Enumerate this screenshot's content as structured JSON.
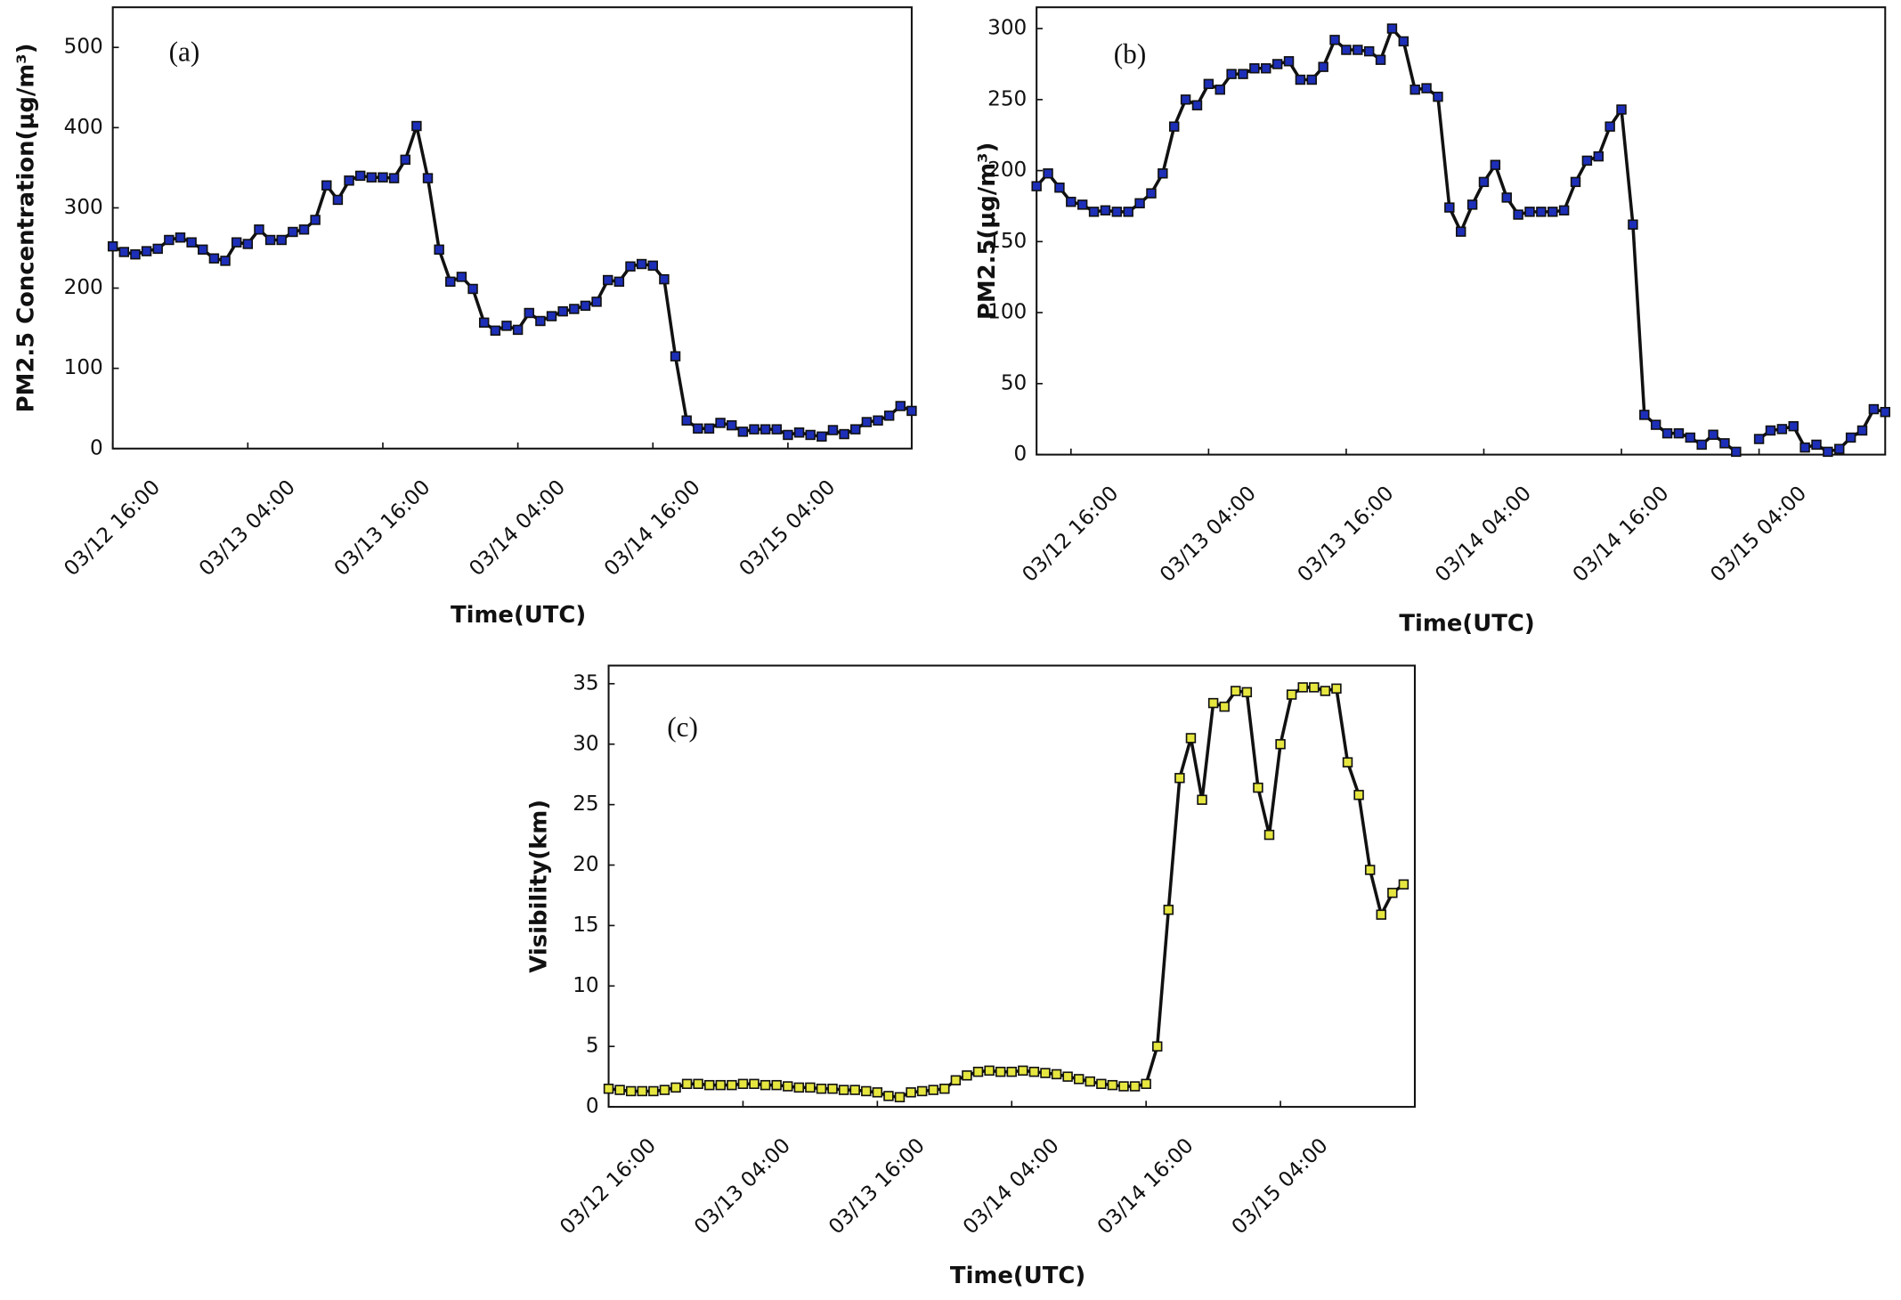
{
  "chart_data": [
    {
      "type": "line",
      "annotation": "(a)",
      "xlabel": "Time(UTC)",
      "ylabel": "PM2.5 Concentration(μg/m³)",
      "x": [
        "03/12 16:00",
        "03/12 17:00",
        "03/12 18:00",
        "03/12 19:00",
        "03/12 20:00",
        "03/12 21:00",
        "03/12 22:00",
        "03/12 23:00",
        "03/13 00:00",
        "03/13 01:00",
        "03/13 02:00",
        "03/13 03:00",
        "03/13 04:00",
        "03/13 05:00",
        "03/13 06:00",
        "03/13 07:00",
        "03/13 08:00",
        "03/13 09:00",
        "03/13 10:00",
        "03/13 11:00",
        "03/13 12:00",
        "03/13 13:00",
        "03/13 14:00",
        "03/13 15:00",
        "03/13 16:00",
        "03/13 17:00",
        "03/13 18:00",
        "03/13 19:00",
        "03/13 20:00",
        "03/13 21:00",
        "03/13 22:00",
        "03/13 23:00",
        "03/14 00:00",
        "03/14 01:00",
        "03/14 02:00",
        "03/14 03:00",
        "03/14 04:00",
        "03/14 05:00",
        "03/14 06:00",
        "03/14 07:00",
        "03/14 08:00",
        "03/14 09:00",
        "03/14 10:00",
        "03/14 11:00",
        "03/14 12:00",
        "03/14 13:00",
        "03/14 14:00",
        "03/14 15:00",
        "03/14 16:00",
        "03/14 17:00",
        "03/14 18:00",
        "03/14 19:00",
        "03/14 20:00",
        "03/14 21:00",
        "03/14 22:00",
        "03/14 23:00",
        "03/15 00:00",
        "03/15 01:00",
        "03/15 02:00",
        "03/15 03:00",
        "03/15 04:00",
        "03/15 05:00",
        "03/15 06:00",
        "03/15 07:00",
        "03/15 08:00",
        "03/15 09:00",
        "03/15 10:00",
        "03/15 11:00",
        "03/15 12:00",
        "03/15 13:00",
        "03/15 14:00",
        "03/15 15:00"
      ],
      "series": [
        {
          "color": "#1d2fb8",
          "line_color": "#111111",
          "values": [
            252,
            245,
            242,
            246,
            249,
            260,
            263,
            257,
            248,
            237,
            234,
            257,
            255,
            273,
            260,
            260,
            270,
            273,
            285,
            328,
            310,
            334,
            340,
            338,
            338,
            337,
            360,
            402,
            337,
            248,
            208,
            214,
            199,
            157,
            147,
            153,
            148,
            169,
            159,
            165,
            171,
            174,
            178,
            183,
            210,
            208,
            227,
            230,
            228,
            211,
            115,
            35,
            25,
            25,
            32,
            29,
            21,
            24,
            24,
            24,
            17,
            20,
            17,
            15,
            23,
            18,
            24,
            33,
            35,
            41,
            53,
            47
          ]
        }
      ],
      "xlim": [
        "03/12 16:00",
        "03/15 15:00"
      ],
      "xticks": [
        "03/12 16:00",
        "03/13 04:00",
        "03/13 16:00",
        "03/14 04:00",
        "03/14 16:00",
        "03/15 04:00"
      ],
      "ylim": [
        0,
        550
      ],
      "yticks": [
        0,
        100,
        200,
        300,
        400,
        500
      ]
    },
    {
      "type": "line",
      "annotation": "(b)",
      "xlabel": "Time(UTC)",
      "ylabel": "PM2.5(μg/m³)",
      "x": [
        "03/12 13:00",
        "03/12 14:00",
        "03/12 15:00",
        "03/12 16:00",
        "03/12 17:00",
        "03/12 18:00",
        "03/12 19:00",
        "03/12 20:00",
        "03/12 21:00",
        "03/12 22:00",
        "03/12 23:00",
        "03/13 00:00",
        "03/13 01:00",
        "03/13 02:00",
        "03/13 03:00",
        "03/13 04:00",
        "03/13 05:00",
        "03/13 06:00",
        "03/13 07:00",
        "03/13 08:00",
        "03/13 09:00",
        "03/13 10:00",
        "03/13 11:00",
        "03/13 12:00",
        "03/13 13:00",
        "03/13 14:00",
        "03/13 15:00",
        "03/13 16:00",
        "03/13 17:00",
        "03/13 18:00",
        "03/13 19:00",
        "03/13 20:00",
        "03/13 21:00",
        "03/13 22:00",
        "03/13 23:00",
        "03/14 00:00",
        "03/14 01:00",
        "03/14 02:00",
        "03/14 03:00",
        "03/14 04:00",
        "03/14 05:00",
        "03/14 06:00",
        "03/14 07:00",
        "03/14 08:00",
        "03/14 09:00",
        "03/14 10:00",
        "03/14 11:00",
        "03/14 12:00",
        "03/14 13:00",
        "03/14 14:00",
        "03/14 15:00",
        "03/14 16:00",
        "03/14 17:00",
        "03/14 18:00",
        "03/14 19:00",
        "03/14 20:00",
        "03/14 21:00",
        "03/14 22:00",
        "03/14 23:00",
        "03/15 00:00",
        "03/15 01:00",
        "03/15 02:00",
        "03/15 03:00",
        "03/15 04:00",
        "03/15 05:00",
        "03/15 06:00",
        "03/15 07:00",
        "03/15 08:00",
        "03/15 09:00",
        "03/15 10:00",
        "03/15 11:00",
        "03/15 12:00",
        "03/15 13:00",
        "03/15 14:00",
        "03/15 15:00"
      ],
      "series": [
        {
          "color": "#1d2fb8",
          "line_color": "#111111",
          "values": [
            189,
            198,
            188,
            178,
            176,
            171,
            172,
            171,
            171,
            177,
            184,
            198,
            231,
            250,
            246,
            261,
            257,
            268,
            268,
            272,
            272,
            275,
            277,
            264,
            264,
            273,
            292,
            285,
            285,
            284,
            278,
            300,
            291,
            257,
            258,
            252,
            174,
            157,
            176,
            192,
            204,
            181,
            169,
            171,
            171,
            171,
            172,
            192,
            207,
            210,
            231,
            243,
            162,
            28,
            21,
            15,
            15,
            12,
            7,
            14,
            8,
            2,
            null,
            11,
            17,
            18,
            20,
            5,
            7,
            2,
            4,
            12,
            17,
            32,
            30
          ]
        }
      ],
      "xlim": [
        "03/12 13:00",
        "03/15 15:00"
      ],
      "xticks": [
        "03/12 16:00",
        "03/13 04:00",
        "03/13 16:00",
        "03/14 04:00",
        "03/14 16:00",
        "03/15 04:00"
      ],
      "ylim": [
        0,
        315
      ],
      "yticks": [
        0,
        50,
        100,
        150,
        200,
        250,
        300
      ]
    },
    {
      "type": "line",
      "annotation": "(c)",
      "xlabel": "Time(UTC)",
      "ylabel": "Visibility(km)",
      "x": [
        "03/12 16:00",
        "03/12 17:00",
        "03/12 18:00",
        "03/12 19:00",
        "03/12 20:00",
        "03/12 21:00",
        "03/12 22:00",
        "03/12 23:00",
        "03/13 00:00",
        "03/13 01:00",
        "03/13 02:00",
        "03/13 03:00",
        "03/13 04:00",
        "03/13 05:00",
        "03/13 06:00",
        "03/13 07:00",
        "03/13 08:00",
        "03/13 09:00",
        "03/13 10:00",
        "03/13 11:00",
        "03/13 12:00",
        "03/13 13:00",
        "03/13 14:00",
        "03/13 15:00",
        "03/13 16:00",
        "03/13 17:00",
        "03/13 18:00",
        "03/13 19:00",
        "03/13 20:00",
        "03/13 21:00",
        "03/13 22:00",
        "03/13 23:00",
        "03/14 00:00",
        "03/14 01:00",
        "03/14 02:00",
        "03/14 03:00",
        "03/14 04:00",
        "03/14 05:00",
        "03/14 06:00",
        "03/14 07:00",
        "03/14 08:00",
        "03/14 09:00",
        "03/14 10:00",
        "03/14 11:00",
        "03/14 12:00",
        "03/14 13:00",
        "03/14 14:00",
        "03/14 15:00",
        "03/14 16:00",
        "03/14 17:00",
        "03/14 18:00",
        "03/14 19:00",
        "03/14 20:00",
        "03/14 21:00",
        "03/14 22:00",
        "03/14 23:00",
        "03/15 00:00",
        "03/15 01:00",
        "03/15 02:00",
        "03/15 03:00",
        "03/15 04:00",
        "03/15 05:00",
        "03/15 06:00",
        "03/15 07:00",
        "03/15 08:00",
        "03/15 09:00",
        "03/15 10:00",
        "03/15 11:00",
        "03/15 12:00",
        "03/15 13:00",
        "03/15 14:00",
        "03/15 15:00"
      ],
      "series": [
        {
          "color": "#e6e640",
          "line_color": "#111111",
          "values": [
            1.5,
            1.4,
            1.3,
            1.3,
            1.3,
            1.4,
            1.6,
            1.9,
            1.9,
            1.8,
            1.8,
            1.8,
            1.9,
            1.9,
            1.8,
            1.8,
            1.7,
            1.6,
            1.6,
            1.5,
            1.5,
            1.4,
            1.4,
            1.3,
            1.2,
            0.9,
            0.8,
            1.2,
            1.3,
            1.4,
            1.5,
            2.2,
            2.6,
            2.9,
            3.0,
            2.9,
            2.9,
            3.0,
            2.9,
            2.8,
            2.7,
            2.5,
            2.3,
            2.1,
            1.9,
            1.8,
            1.7,
            1.7,
            1.9,
            5.0,
            16.3,
            27.2,
            30.5,
            25.4,
            33.4,
            33.1,
            34.4,
            34.3,
            26.4,
            22.5,
            30.0,
            34.1,
            34.7,
            34.7,
            34.4,
            34.6,
            28.5,
            25.8,
            19.6,
            15.9,
            17.7,
            18.4
          ]
        }
      ],
      "xlim": [
        "03/12 16:00",
        "03/15 16:00"
      ],
      "xticks": [
        "03/12 16:00",
        "03/13 04:00",
        "03/13 16:00",
        "03/14 04:00",
        "03/14 16:00",
        "03/15 04:00"
      ],
      "ylim": [
        0,
        36.5
      ],
      "yticks": [
        0,
        5,
        10,
        15,
        20,
        25,
        30,
        35
      ]
    }
  ]
}
